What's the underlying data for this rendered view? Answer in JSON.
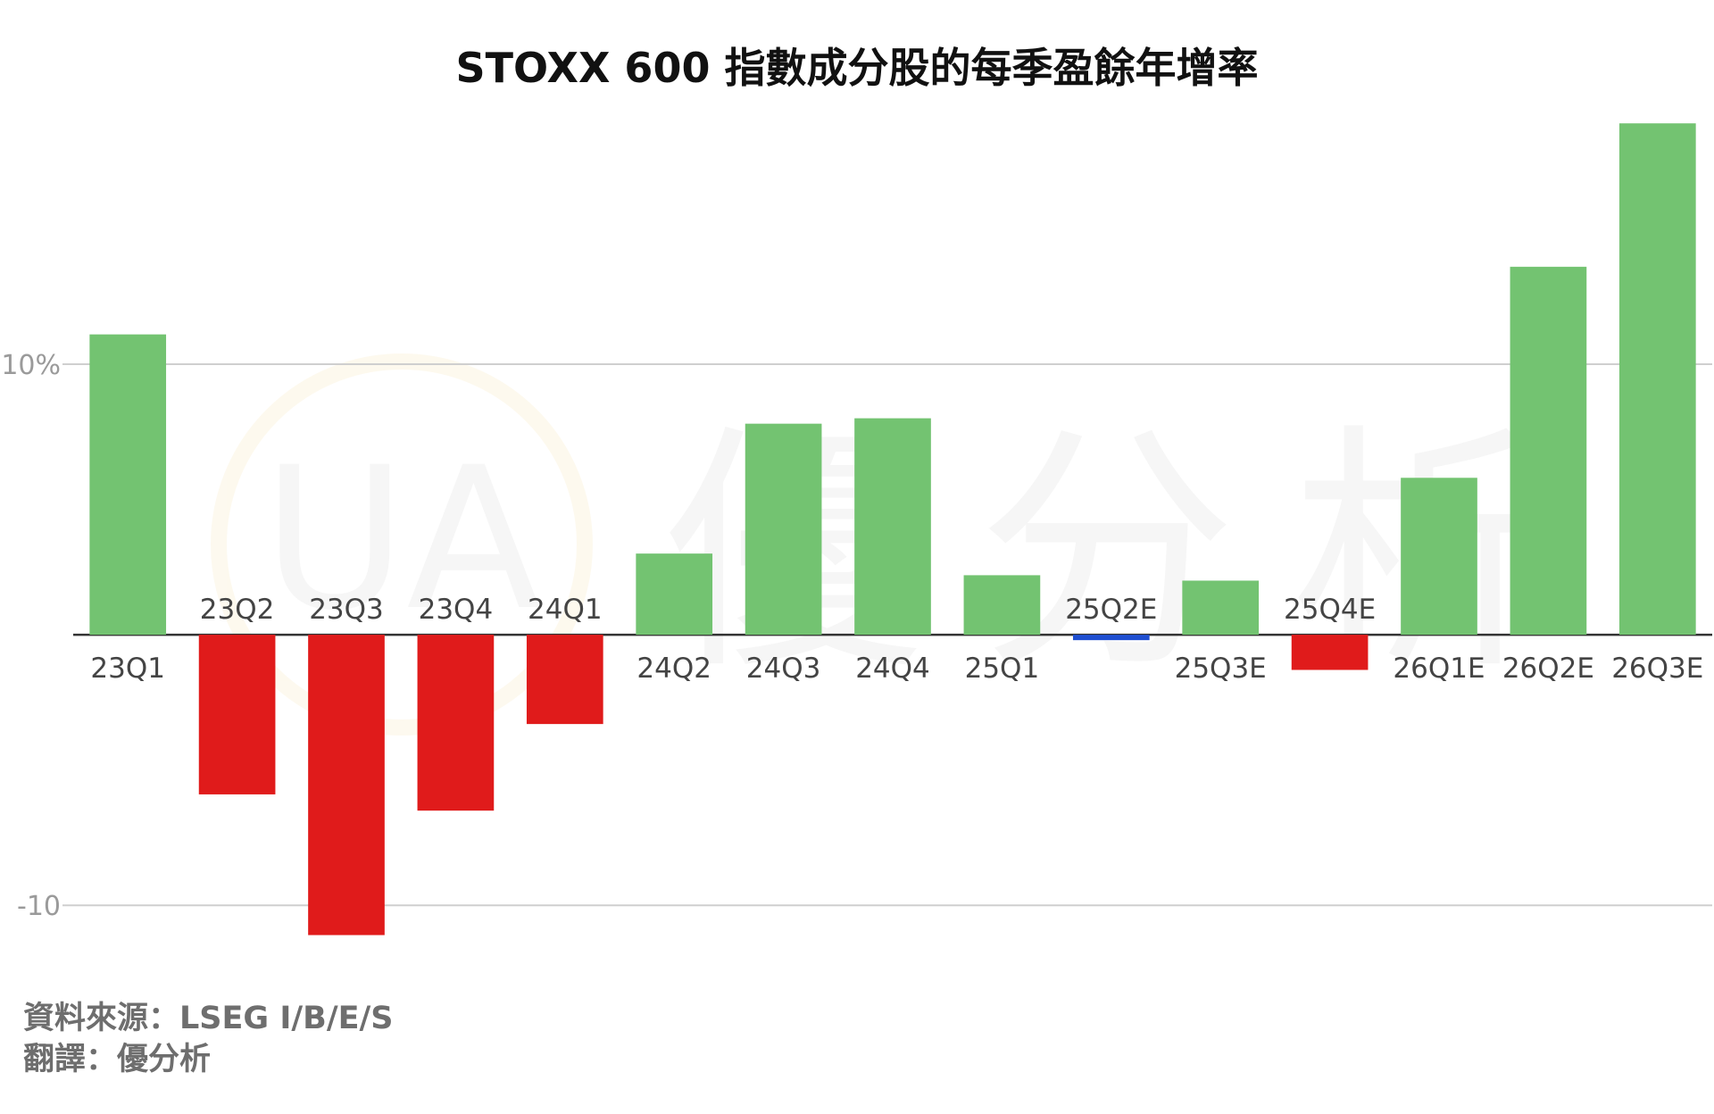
{
  "chart_data": {
    "type": "bar",
    "title": "STOXX 600 指數成分股的每季盈餘年增率",
    "xlabel": "",
    "ylabel": "",
    "ylim": [
      -12.5,
      19.5
    ],
    "y_ticks": [
      {
        "value": 10,
        "label": "10%"
      },
      {
        "value": -10,
        "label": "-10"
      }
    ],
    "grid": true,
    "legend": "none",
    "categories": [
      "23Q1",
      "23Q2",
      "23Q3",
      "23Q4",
      "24Q1",
      "24Q2",
      "24Q3",
      "24Q4",
      "25Q1",
      "25Q2E",
      "25Q3E",
      "25Q4E",
      "26Q1E",
      "26Q2E",
      "26Q3E"
    ],
    "values": [
      11.1,
      -5.9,
      -11.1,
      -6.5,
      -3.3,
      3.0,
      7.8,
      8.0,
      2.2,
      -0.2,
      2.0,
      -1.3,
      5.8,
      13.6,
      18.9
    ],
    "bar_colors": [
      "#73c371",
      "#e01b1b",
      "#e01b1b",
      "#e01b1b",
      "#e01b1b",
      "#73c371",
      "#73c371",
      "#73c371",
      "#73c371",
      "#1f4fd1",
      "#73c371",
      "#e01b1b",
      "#73c371",
      "#73c371",
      "#73c371"
    ]
  },
  "colors": {
    "positive": "#73c371",
    "negative": "#e01b1b",
    "flat": "#1f4fd1",
    "gridline": "#cfcfcf",
    "baseline": "#333333"
  },
  "footer": {
    "source": "資料來源：LSEG I/B/E/S",
    "translation": "翻譯：優分析"
  },
  "watermark": {
    "text": "優分析",
    "logo_text": "UA"
  }
}
